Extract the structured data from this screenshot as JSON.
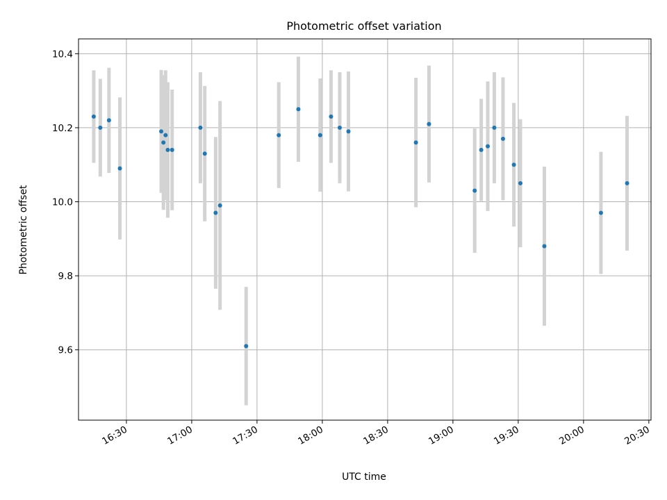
{
  "chart_data": {
    "type": "scatter",
    "title": "Photometric offset variation",
    "xlabel": "UTC time",
    "ylabel": "Photometric offset",
    "x_tick_labels": [
      "16:30",
      "17:00",
      "17:30",
      "18:00",
      "18:30",
      "19:00",
      "19:30",
      "20:00",
      "20:30"
    ],
    "x_ticks": [
      "16:30",
      "17:00",
      "17:30",
      "18:00",
      "18:30",
      "19:00",
      "19:30",
      "20:00",
      "20:30"
    ],
    "y_tick_labels": [
      "9.6",
      "9.8",
      "10.0",
      "10.2",
      "10.4"
    ],
    "y_ticks": [
      9.6,
      9.8,
      10.0,
      10.2,
      10.4
    ],
    "xlim": [
      "16:08",
      "20:31"
    ],
    "ylim": [
      9.41,
      10.44
    ],
    "grid": true,
    "legend": "none",
    "colors": {
      "points": "#1f77b4",
      "errorbars": "#d3d3d3",
      "grid": "#b0b0b0",
      "axes": "#000000"
    },
    "points": [
      {
        "x": "16:15",
        "y": 10.23,
        "yerr": 0.125
      },
      {
        "x": "16:18",
        "y": 10.2,
        "yerr": 0.132
      },
      {
        "x": "16:22",
        "y": 10.22,
        "yerr": 0.142
      },
      {
        "x": "16:27",
        "y": 10.09,
        "yerr": 0.192
      },
      {
        "x": "16:46",
        "y": 10.19,
        "yerr": 0.166
      },
      {
        "x": "16:47",
        "y": 10.16,
        "yerr": 0.182
      },
      {
        "x": "16:48",
        "y": 10.18,
        "yerr": 0.175
      },
      {
        "x": "16:49",
        "y": 10.14,
        "yerr": 0.183
      },
      {
        "x": "16:51",
        "y": 10.14,
        "yerr": 0.163
      },
      {
        "x": "17:04",
        "y": 10.2,
        "yerr": 0.15
      },
      {
        "x": "17:06",
        "y": 10.13,
        "yerr": 0.183
      },
      {
        "x": "17:11",
        "y": 9.97,
        "yerr": 0.205
      },
      {
        "x": "17:13",
        "y": 9.99,
        "yerr": 0.282
      },
      {
        "x": "17:25",
        "y": 9.61,
        "yerr": 0.16
      },
      {
        "x": "17:40",
        "y": 10.18,
        "yerr": 0.143
      },
      {
        "x": "17:49",
        "y": 10.25,
        "yerr": 0.142
      },
      {
        "x": "17:59",
        "y": 10.18,
        "yerr": 0.153
      },
      {
        "x": "18:04",
        "y": 10.23,
        "yerr": 0.125
      },
      {
        "x": "18:08",
        "y": 10.2,
        "yerr": 0.15
      },
      {
        "x": "18:12",
        "y": 10.19,
        "yerr": 0.162
      },
      {
        "x": "18:43",
        "y": 10.16,
        "yerr": 0.175
      },
      {
        "x": "18:49",
        "y": 10.21,
        "yerr": 0.158
      },
      {
        "x": "19:10",
        "y": 10.03,
        "yerr": 0.168
      },
      {
        "x": "19:13",
        "y": 10.14,
        "yerr": 0.138
      },
      {
        "x": "19:16",
        "y": 10.15,
        "yerr": 0.175
      },
      {
        "x": "19:19",
        "y": 10.2,
        "yerr": 0.15
      },
      {
        "x": "19:23",
        "y": 10.17,
        "yerr": 0.166
      },
      {
        "x": "19:28",
        "y": 10.1,
        "yerr": 0.167
      },
      {
        "x": "19:31",
        "y": 10.05,
        "yerr": 0.173
      },
      {
        "x": "19:42",
        "y": 9.88,
        "yerr": 0.215
      },
      {
        "x": "20:08",
        "y": 9.97,
        "yerr": 0.165
      },
      {
        "x": "20:20",
        "y": 10.05,
        "yerr": 0.182
      }
    ]
  }
}
